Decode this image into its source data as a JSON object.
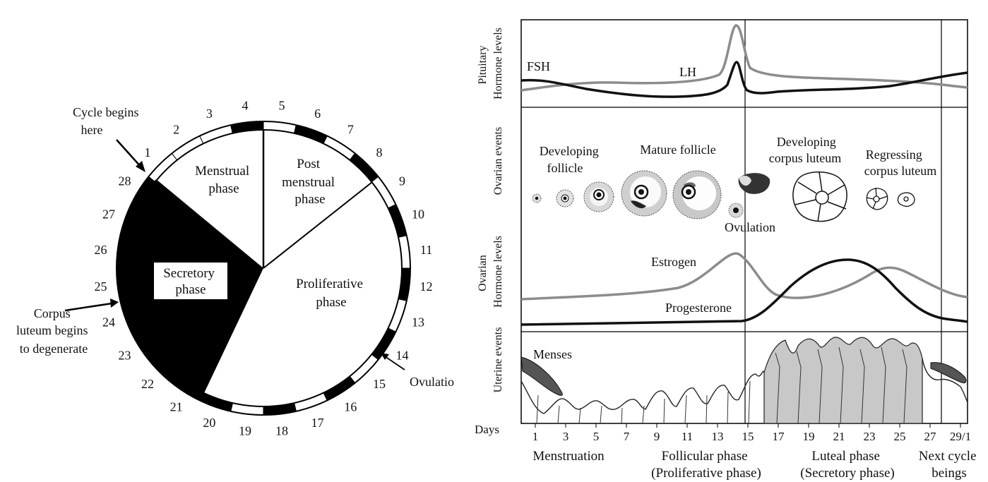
{
  "cycle_wheel": {
    "day_numbers": [
      "1",
      "2",
      "3",
      "4",
      "5",
      "6",
      "7",
      "8",
      "9",
      "10",
      "11",
      "12",
      "13",
      "14",
      "15",
      "16",
      "17",
      "18",
      "19",
      "20",
      "21",
      "22",
      "23",
      "24",
      "25",
      "26",
      "27",
      "28"
    ],
    "annotations": {
      "cycle_begins": [
        "Cycle begins",
        "here"
      ],
      "corpus_luteum": [
        "Corpus",
        "luteum begins",
        "to degenerate"
      ],
      "ovulation": "Ovulatio"
    },
    "phases": {
      "menstrual": [
        "Menstrual",
        "phase"
      ],
      "post_menstrual": [
        "Post",
        "menstrual",
        "phase"
      ],
      "proliferative": [
        "Proliferative",
        "phase"
      ],
      "secretory": [
        "Secretory",
        "phase"
      ]
    }
  },
  "cycle_chart": {
    "rows": {
      "pituitary": [
        "Pituitary",
        "Hormone levels"
      ],
      "ovarian_events": "Ovarian events",
      "ovarian_hormones": [
        "Ovarian",
        "Hormone levels"
      ],
      "uterine": "Uterine events"
    },
    "hormones": {
      "fsh": "FSH",
      "lh": "LH",
      "estrogen": "Estrogen",
      "progesterone": "Progesterone"
    },
    "ovarian_labels": {
      "developing_follicle": [
        "Developing",
        "follicle"
      ],
      "mature_follicle": "Mature follicle",
      "developing_corpus_luteum": [
        "Developing",
        "corpus luteum"
      ],
      "regressing_corpus_luteum": [
        "Regressing",
        "corpus luteum"
      ],
      "ovulation": "Ovulation"
    },
    "uterine_label": "Menses",
    "days_label": "Days",
    "day_ticks": [
      "1",
      "3",
      "5",
      "7",
      "9",
      "11",
      "13",
      "15",
      "17",
      "19",
      "21",
      "23",
      "25",
      "27",
      "29/1"
    ],
    "phase_labels": {
      "menstruation": "Menstruation",
      "follicular": [
        "Follicular phase",
        "(Proliferative phase)"
      ],
      "luteal": [
        "Luteal phase",
        "(Secretory phase)"
      ],
      "next_cycle": [
        "Next cycle",
        "beings"
      ]
    },
    "colors": {
      "dark_curve": "#111111",
      "light_curve": "#8c8c8c"
    }
  }
}
